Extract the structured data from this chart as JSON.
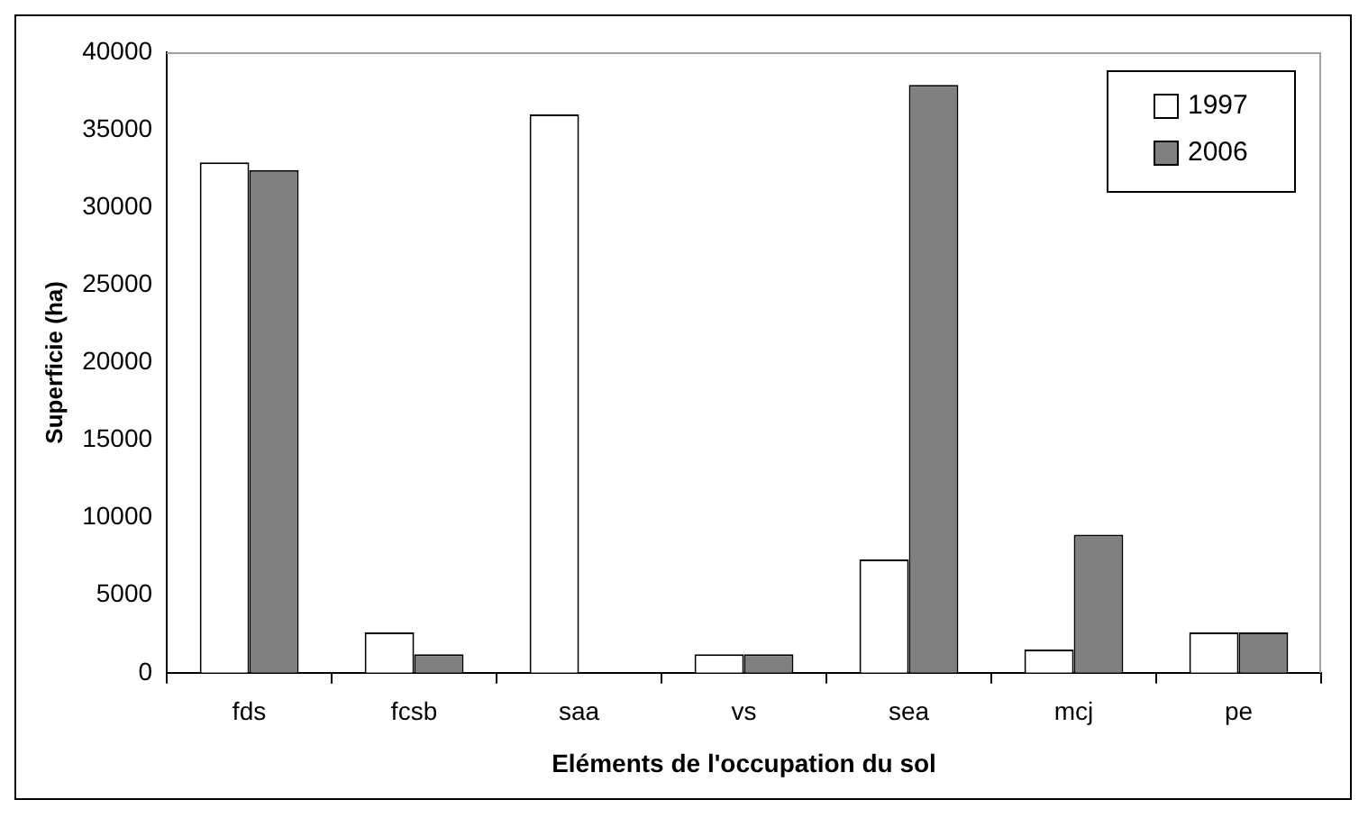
{
  "chart_data": {
    "type": "bar",
    "xlabel": "Eléments de l'occupation du sol",
    "ylabel": "Superficie (ha)",
    "categories": [
      "fds",
      "fcsb",
      "saa",
      "vs",
      "sea",
      "mcj",
      "pe"
    ],
    "series": [
      {
        "name": "1997",
        "color": "#ffffff",
        "values": [
          32900,
          2600,
          36000,
          1200,
          7300,
          1500,
          2600
        ]
      },
      {
        "name": "2006",
        "color": "#808080",
        "values": [
          32400,
          1200,
          0,
          1200,
          37900,
          8900,
          2600
        ]
      }
    ],
    "ylim": [
      0,
      40000
    ],
    "yticks": [
      0,
      5000,
      10000,
      15000,
      20000,
      25000,
      30000,
      35000,
      40000
    ],
    "grid": false,
    "legend": "top right"
  }
}
